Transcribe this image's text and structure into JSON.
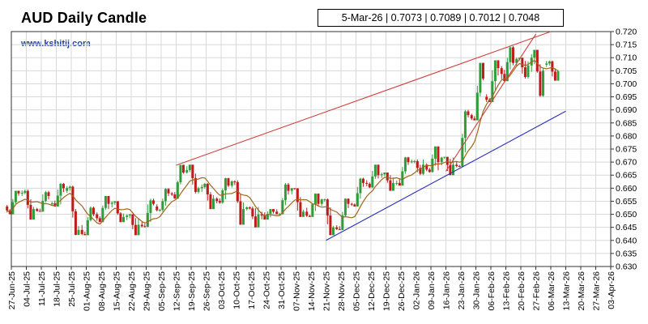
{
  "header": {
    "title": "AUD Daily Candle",
    "watermark": "www.kshitij.com",
    "ohlc": "5-Mar-26 | 0.7073 | 0.7089 | 0.7012 | 0.7048"
  },
  "chart_data": {
    "type": "candlestick",
    "title": "AUD Daily Candle",
    "xlabel": "",
    "ylabel": "",
    "ylim": [
      0.63,
      0.72
    ],
    "y_ticks": [
      "0.720",
      "0.715",
      "0.710",
      "0.705",
      "0.700",
      "0.695",
      "0.690",
      "0.685",
      "0.680",
      "0.675",
      "0.670",
      "0.665",
      "0.660",
      "0.655",
      "0.650",
      "0.645",
      "0.640",
      "0.635",
      "0.630"
    ],
    "x_ticks": [
      "27-Jun-25",
      "04-Jul-25",
      "11-Jul-25",
      "18-Jul-25",
      "25-Jul-25",
      "01-Aug-25",
      "08-Aug-25",
      "15-Aug-25",
      "22-Aug-25",
      "29-Aug-25",
      "05-Sep-25",
      "12-Sep-25",
      "19-Sep-25",
      "26-Sep-25",
      "03-Oct-25",
      "10-Oct-25",
      "17-Oct-25",
      "24-Oct-25",
      "31-Oct-25",
      "07-Nov-25",
      "14-Nov-25",
      "21-Nov-25",
      "28-Nov-25",
      "05-Dec-25",
      "12-Dec-25",
      "19-Dec-25",
      "26-Dec-25",
      "02-Jan-26",
      "09-Jan-26",
      "16-Jan-26",
      "23-Jan-26",
      "30-Jan-26",
      "06-Feb-26",
      "13-Feb-26",
      "20-Feb-26",
      "27-Feb-26",
      "06-Mar-26",
      "13-Mar-26",
      "20-Mar-26",
      "27-Mar-26",
      "03-Apr-26"
    ],
    "grid": true,
    "colors": {
      "up": "#2f9e3a",
      "down": "#c01b1b",
      "moving_average": "#a0661a",
      "resistance": "#d04040",
      "support": "#2b2fb5"
    },
    "weekly_candles": [
      {
        "week": "27-Jun-25",
        "o": 0.653,
        "h": 0.659,
        "l": 0.65,
        "c": 0.658
      },
      {
        "week": "04-Jul-25",
        "o": 0.658,
        "h": 0.6595,
        "l": 0.648,
        "c": 0.652
      },
      {
        "week": "11-Jul-25",
        "o": 0.652,
        "h": 0.659,
        "l": 0.651,
        "c": 0.657
      },
      {
        "week": "18-Jul-25",
        "o": 0.654,
        "h": 0.662,
        "l": 0.653,
        "c": 0.66
      },
      {
        "week": "25-Jul-25",
        "o": 0.659,
        "h": 0.661,
        "l": 0.642,
        "c": 0.644
      },
      {
        "week": "01-Aug-25",
        "o": 0.644,
        "h": 0.653,
        "l": 0.642,
        "c": 0.65
      },
      {
        "week": "08-Aug-25",
        "o": 0.65,
        "h": 0.657,
        "l": 0.647,
        "c": 0.654
      },
      {
        "week": "15-Aug-25",
        "o": 0.654,
        "h": 0.655,
        "l": 0.647,
        "c": 0.649
      },
      {
        "week": "22-Aug-25",
        "o": 0.649,
        "h": 0.65,
        "l": 0.642,
        "c": 0.646
      },
      {
        "week": "29-Aug-25",
        "o": 0.646,
        "h": 0.656,
        "l": 0.645,
        "c": 0.654
      },
      {
        "week": "05-Sep-25",
        "o": 0.653,
        "h": 0.66,
        "l": 0.651,
        "c": 0.658
      },
      {
        "week": "12-Sep-25",
        "o": 0.658,
        "h": 0.669,
        "l": 0.656,
        "c": 0.666
      },
      {
        "week": "19-Sep-25",
        "o": 0.666,
        "h": 0.669,
        "l": 0.658,
        "c": 0.66
      },
      {
        "week": "26-Sep-25",
        "o": 0.66,
        "h": 0.662,
        "l": 0.652,
        "c": 0.656
      },
      {
        "week": "03-Oct-25",
        "o": 0.656,
        "h": 0.664,
        "l": 0.654,
        "c": 0.661
      },
      {
        "week": "10-Oct-25",
        "o": 0.661,
        "h": 0.663,
        "l": 0.646,
        "c": 0.652
      },
      {
        "week": "17-Oct-25",
        "o": 0.652,
        "h": 0.653,
        "l": 0.645,
        "c": 0.65
      },
      {
        "week": "24-Oct-25",
        "o": 0.65,
        "h": 0.652,
        "l": 0.648,
        "c": 0.651
      },
      {
        "week": "31-Oct-25",
        "o": 0.651,
        "h": 0.662,
        "l": 0.65,
        "c": 0.659
      },
      {
        "week": "07-Nov-25",
        "o": 0.659,
        "h": 0.66,
        "l": 0.649,
        "c": 0.651
      },
      {
        "week": "14-Nov-25",
        "o": 0.651,
        "h": 0.658,
        "l": 0.649,
        "c": 0.654
      },
      {
        "week": "21-Nov-25",
        "o": 0.654,
        "h": 0.656,
        "l": 0.642,
        "c": 0.645
      },
      {
        "week": "28-Nov-25",
        "o": 0.645,
        "h": 0.656,
        "l": 0.644,
        "c": 0.654
      },
      {
        "week": "05-Dec-25",
        "o": 0.654,
        "h": 0.664,
        "l": 0.653,
        "c": 0.662
      },
      {
        "week": "12-Dec-25",
        "o": 0.662,
        "h": 0.669,
        "l": 0.66,
        "c": 0.665
      },
      {
        "week": "19-Dec-25",
        "o": 0.665,
        "h": 0.666,
        "l": 0.659,
        "c": 0.662
      },
      {
        "week": "26-Dec-25",
        "o": 0.662,
        "h": 0.672,
        "l": 0.661,
        "c": 0.67
      },
      {
        "week": "02-Jan-26",
        "o": 0.67,
        "h": 0.671,
        "l": 0.665,
        "c": 0.669
      },
      {
        "week": "09-Jan-26",
        "o": 0.669,
        "h": 0.676,
        "l": 0.666,
        "c": 0.67
      },
      {
        "week": "16-Jan-26",
        "o": 0.67,
        "h": 0.672,
        "l": 0.665,
        "c": 0.669
      },
      {
        "week": "23-Jan-26",
        "o": 0.669,
        "h": 0.69,
        "l": 0.668,
        "c": 0.688
      },
      {
        "week": "30-Jan-26",
        "o": 0.688,
        "h": 0.708,
        "l": 0.686,
        "c": 0.702
      },
      {
        "week": "06-Feb-26",
        "o": 0.695,
        "h": 0.709,
        "l": 0.693,
        "c": 0.706
      },
      {
        "week": "13-Feb-26",
        "o": 0.706,
        "h": 0.7145,
        "l": 0.701,
        "c": 0.708
      },
      {
        "week": "20-Feb-26",
        "o": 0.708,
        "h": 0.71,
        "l": 0.702,
        "c": 0.707
      },
      {
        "week": "27-Feb-26",
        "o": 0.707,
        "h": 0.713,
        "l": 0.695,
        "c": 0.705
      },
      {
        "week": "06-Mar-26",
        "o": 0.7073,
        "h": 0.7089,
        "l": 0.7012,
        "c": 0.7048
      }
    ],
    "last_bar": {
      "date": "5-Mar-26",
      "open": 0.7073,
      "high": 0.7089,
      "low": 0.7012,
      "close": 0.7048
    },
    "lines": [
      {
        "name": "resistance",
        "from": {
          "date": "12-Sep-25",
          "value": 0.6688
        },
        "to": {
          "date": "06-Mar-26",
          "value": 0.72
        }
      },
      {
        "name": "support",
        "from": {
          "date": "21-Nov-25",
          "value": 0.64
        },
        "to": {
          "date": "13-Mar-26",
          "value": 0.6895
        }
      },
      {
        "name": "steep-support",
        "from": {
          "date": "16-Jan-26",
          "value": 0.6665
        },
        "to": {
          "date": "27-Feb-26",
          "value": 0.719
        }
      }
    ]
  }
}
